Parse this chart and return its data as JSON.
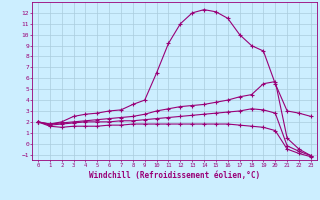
{
  "xlabel": "Windchill (Refroidissement éolien,°C)",
  "background_color": "#cceeff",
  "grid_color": "#aaccdd",
  "line_color": "#990077",
  "xlim": [
    -0.5,
    23.5
  ],
  "ylim": [
    -1.5,
    13.0
  ],
  "xticks": [
    0,
    1,
    2,
    3,
    4,
    5,
    6,
    7,
    8,
    9,
    10,
    11,
    12,
    13,
    14,
    15,
    16,
    17,
    18,
    19,
    20,
    21,
    22,
    23
  ],
  "yticks": [
    -1,
    0,
    1,
    2,
    3,
    4,
    5,
    6,
    7,
    8,
    9,
    10,
    11,
    12
  ],
  "curve1_x": [
    0,
    1,
    2,
    3,
    4,
    5,
    6,
    7,
    8,
    9,
    10,
    11,
    12,
    13,
    14,
    15,
    16,
    17,
    18,
    19,
    20,
    21,
    22,
    23
  ],
  "curve1_y": [
    2.0,
    1.8,
    2.0,
    2.5,
    2.7,
    2.8,
    3.0,
    3.1,
    3.6,
    4.0,
    6.5,
    9.2,
    11.0,
    12.0,
    12.3,
    12.1,
    11.5,
    10.0,
    9.0,
    8.5,
    5.5,
    3.0,
    2.8,
    2.5
  ],
  "curve2_x": [
    0,
    1,
    2,
    3,
    4,
    5,
    6,
    7,
    8,
    9,
    10,
    11,
    12,
    13,
    14,
    15,
    16,
    17,
    18,
    19,
    20,
    21,
    22,
    23
  ],
  "curve2_y": [
    2.0,
    1.8,
    1.9,
    2.0,
    2.1,
    2.2,
    2.3,
    2.4,
    2.5,
    2.7,
    3.0,
    3.2,
    3.4,
    3.5,
    3.6,
    3.8,
    4.0,
    4.3,
    4.5,
    5.5,
    5.7,
    0.5,
    -0.5,
    -1.1
  ],
  "curve3_x": [
    0,
    1,
    2,
    3,
    4,
    5,
    6,
    7,
    8,
    9,
    10,
    11,
    12,
    13,
    14,
    15,
    16,
    17,
    18,
    19,
    20,
    21,
    22,
    23
  ],
  "curve3_y": [
    2.0,
    1.7,
    1.8,
    1.9,
    2.0,
    2.0,
    2.0,
    2.1,
    2.1,
    2.2,
    2.3,
    2.4,
    2.5,
    2.6,
    2.7,
    2.8,
    2.9,
    3.0,
    3.2,
    3.1,
    2.8,
    -0.2,
    -0.7,
    -1.1
  ],
  "curve4_x": [
    0,
    1,
    2,
    3,
    4,
    5,
    6,
    7,
    8,
    9,
    10,
    11,
    12,
    13,
    14,
    15,
    16,
    17,
    18,
    19,
    20,
    21,
    22,
    23
  ],
  "curve4_y": [
    2.0,
    1.6,
    1.5,
    1.6,
    1.6,
    1.6,
    1.7,
    1.7,
    1.8,
    1.8,
    1.8,
    1.8,
    1.8,
    1.8,
    1.8,
    1.8,
    1.8,
    1.7,
    1.6,
    1.5,
    1.2,
    -0.5,
    -0.9,
    -1.2
  ]
}
